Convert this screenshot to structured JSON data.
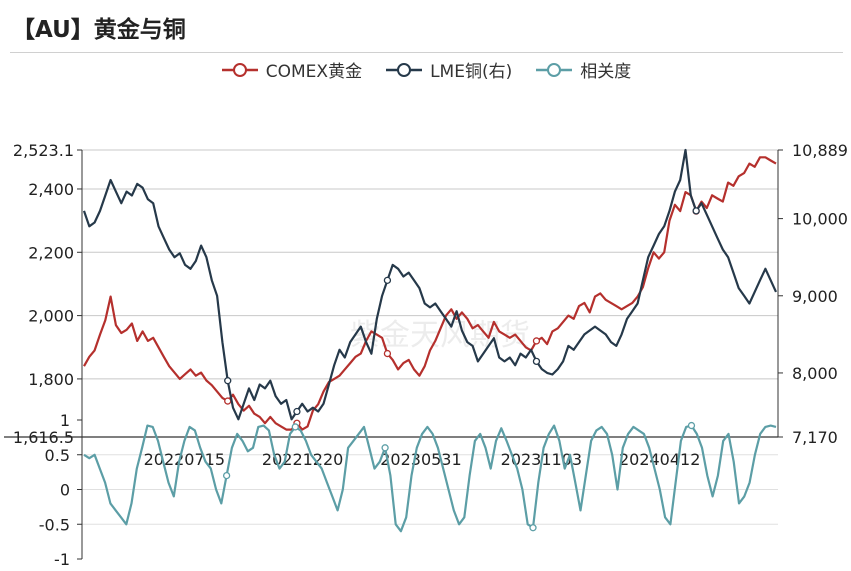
{
  "title": "【AU】黄金与铜",
  "watermark": "紫金天风期货",
  "colors": {
    "gold": "#b5302d",
    "copper": "#26394a",
    "corr": "#5c9ea6",
    "grid": "#c8c8c8",
    "axis": "#333333"
  },
  "chart_data": {
    "type": "line",
    "legend": [
      {
        "name": "COMEX黄金",
        "color": "#b5302d"
      },
      {
        "name": "LME铜(右)",
        "color": "#26394a"
      },
      {
        "name": "相关度",
        "color": "#5c9ea6"
      }
    ],
    "left_axis": {
      "ticks": [
        "2,523.1",
        "2,400",
        "2,200",
        "2,000",
        "1,800",
        "1,616.5"
      ],
      "values": [
        2523.1,
        2400,
        2200,
        2000,
        1800,
        1616.5
      ],
      "range": [
        1616.5,
        2523.1
      ]
    },
    "right_axis": {
      "ticks": [
        "10,889",
        "10,000",
        "9,000",
        "8,000",
        "7,170"
      ],
      "values": [
        10889,
        10000,
        9000,
        8000,
        7170
      ],
      "range": [
        7170,
        10889
      ]
    },
    "corr_axis": {
      "ticks": [
        "1",
        "0.5",
        "0",
        "-0.5",
        "-1"
      ],
      "values": [
        1,
        0.5,
        0,
        -0.5,
        -1
      ],
      "range": [
        -1,
        1
      ]
    },
    "x_labels": [
      "20220715",
      "20221220",
      "20230531",
      "20231103",
      "20240412"
    ],
    "x_label_positions": [
      0.147,
      0.317,
      0.487,
      0.66,
      0.83
    ],
    "series": [
      {
        "name": "COMEX黄金",
        "axis": "left",
        "values": [
          1840,
          1870,
          1890,
          1940,
          1985,
          2060,
          1970,
          1945,
          1955,
          1975,
          1920,
          1950,
          1920,
          1930,
          1900,
          1870,
          1840,
          1820,
          1800,
          1815,
          1830,
          1810,
          1820,
          1795,
          1780,
          1760,
          1740,
          1730,
          1750,
          1720,
          1700,
          1715,
          1690,
          1680,
          1660,
          1680,
          1660,
          1650,
          1640,
          1640,
          1660,
          1640,
          1650,
          1700,
          1720,
          1760,
          1790,
          1800,
          1810,
          1830,
          1850,
          1870,
          1880,
          1920,
          1950,
          1940,
          1930,
          1880,
          1860,
          1830,
          1850,
          1860,
          1830,
          1810,
          1840,
          1890,
          1920,
          1960,
          2000,
          2020,
          1990,
          2010,
          1990,
          1960,
          1970,
          1950,
          1930,
          1980,
          1950,
          1940,
          1930,
          1940,
          1920,
          1900,
          1890,
          1920,
          1930,
          1910,
          1950,
          1960,
          1980,
          2000,
          1990,
          2030,
          2040,
          2010,
          2060,
          2070,
          2050,
          2040,
          2030,
          2020,
          2030,
          2040,
          2060,
          2090,
          2150,
          2200,
          2180,
          2200,
          2300,
          2350,
          2330,
          2390,
          2380,
          2330,
          2360,
          2340,
          2380,
          2370,
          2360,
          2420,
          2410,
          2440,
          2450,
          2480,
          2470,
          2500,
          2500,
          2490,
          2480
        ]
      },
      {
        "name": "LME铜(右)",
        "axis": "right",
        "values": [
          10100,
          9900,
          9950,
          10100,
          10300,
          10500,
          10350,
          10200,
          10350,
          10300,
          10450,
          10400,
          10250,
          10200,
          9900,
          9750,
          9600,
          9500,
          9550,
          9400,
          9350,
          9450,
          9650,
          9500,
          9200,
          9000,
          8400,
          7900,
          7550,
          7400,
          7600,
          7800,
          7650,
          7850,
          7800,
          7900,
          7700,
          7600,
          7650,
          7400,
          7500,
          7600,
          7500,
          7550,
          7500,
          7600,
          7850,
          8100,
          8300,
          8200,
          8400,
          8500,
          8600,
          8400,
          8250,
          8700,
          9000,
          9200,
          9400,
          9350,
          9250,
          9300,
          9200,
          9100,
          8900,
          8850,
          8900,
          8800,
          8700,
          8600,
          8800,
          8550,
          8400,
          8350,
          8150,
          8250,
          8350,
          8450,
          8200,
          8150,
          8200,
          8100,
          8250,
          8200,
          8300,
          8150,
          8050,
          8000,
          7980,
          8050,
          8150,
          8350,
          8300,
          8400,
          8500,
          8550,
          8600,
          8550,
          8500,
          8400,
          8350,
          8500,
          8700,
          8800,
          8900,
          9200,
          9500,
          9650,
          9800,
          9900,
          10100,
          10350,
          10500,
          10889,
          10300,
          10100,
          10200,
          10050,
          9900,
          9750,
          9600,
          9500,
          9300,
          9100,
          9000,
          8900,
          9050,
          9200,
          9350,
          9200,
          9050
        ]
      },
      {
        "name": "相关度",
        "axis": "corr",
        "values": [
          0.5,
          0.45,
          0.5,
          0.3,
          0.1,
          -0.2,
          -0.3,
          -0.4,
          -0.5,
          -0.2,
          0.3,
          0.6,
          0.92,
          0.9,
          0.7,
          0.4,
          0.1,
          -0.1,
          0.4,
          0.7,
          0.9,
          0.85,
          0.6,
          0.4,
          0.3,
          0.0,
          -0.2,
          0.2,
          0.6,
          0.8,
          0.7,
          0.55,
          0.6,
          0.9,
          0.92,
          0.85,
          0.5,
          0.3,
          0.4,
          0.8,
          0.9,
          0.85,
          0.7,
          0.5,
          0.4,
          0.3,
          0.1,
          -0.1,
          -0.3,
          0.0,
          0.6,
          0.7,
          0.8,
          0.9,
          0.6,
          0.3,
          0.4,
          0.6,
          0.2,
          -0.5,
          -0.6,
          -0.4,
          0.2,
          0.6,
          0.8,
          0.9,
          0.8,
          0.6,
          0.3,
          0.0,
          -0.3,
          -0.5,
          -0.4,
          0.2,
          0.7,
          0.8,
          0.6,
          0.3,
          0.7,
          0.88,
          0.7,
          0.5,
          0.3,
          0.0,
          -0.5,
          -0.55,
          0.1,
          0.6,
          0.8,
          0.92,
          0.7,
          0.3,
          0.5,
          0.1,
          -0.3,
          0.2,
          0.7,
          0.85,
          0.9,
          0.8,
          0.5,
          0.0,
          0.6,
          0.8,
          0.9,
          0.85,
          0.8,
          0.6,
          0.3,
          0.0,
          -0.4,
          -0.5,
          0.1,
          0.7,
          0.9,
          0.92,
          0.8,
          0.6,
          0.2,
          -0.1,
          0.2,
          0.7,
          0.8,
          0.4,
          -0.2,
          -0.1,
          0.1,
          0.5,
          0.8,
          0.9,
          0.92,
          0.9
        ]
      }
    ]
  }
}
